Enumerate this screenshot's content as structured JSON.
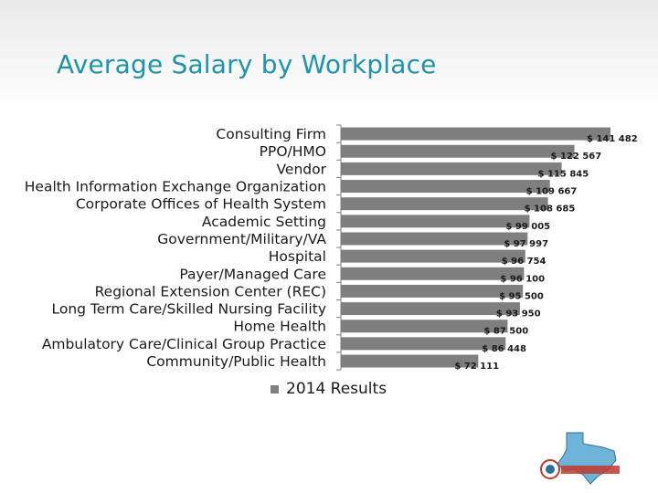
{
  "title": "Average Salary by Workplace",
  "chart_data": {
    "type": "bar",
    "orientation": "horizontal",
    "title": "Average Salary by Workplace",
    "categories": [
      "Consulting Firm",
      "PPO/HMO",
      "Vendor",
      "Health Information Exchange Organization",
      "Corporate Offices of Health System",
      "Academic Setting",
      "Government/Military/VA",
      "Hospital",
      "Payer/Managed Care",
      "Regional Extension Center (REC)",
      "Long Term Care/Skilled Nursing Facility",
      "Home Health",
      "Ambulatory Care/Clinical Group Practice",
      "Community/Public Health"
    ],
    "values": [
      141482,
      122567,
      115845,
      109667,
      108685,
      99005,
      97997,
      96754,
      96100,
      95500,
      93950,
      87500,
      86448,
      72111
    ],
    "value_labels": [
      "$ 141 482",
      "$ 122 567",
      "$ 115 845",
      "$ 109 667",
      "$ 108 685",
      "$ 99 005",
      "$ 97 997",
      "$ 96 754",
      "$ 96 100",
      "$ 95 500",
      "$ 93 950",
      "$ 87 500",
      "$ 86 448",
      "$ 72 111"
    ],
    "series": [
      {
        "name": "2014 Results",
        "color": "#7f7f7f"
      }
    ],
    "xlim": [
      0,
      141482
    ],
    "xlabel": "",
    "ylabel": "",
    "grid": false,
    "legend_position": "bottom"
  },
  "legend": {
    "label": "2014 Results"
  },
  "colors": {
    "bar": "#7f7f7f",
    "title": "#1f93a8",
    "axis": "#7f7f7f"
  }
}
